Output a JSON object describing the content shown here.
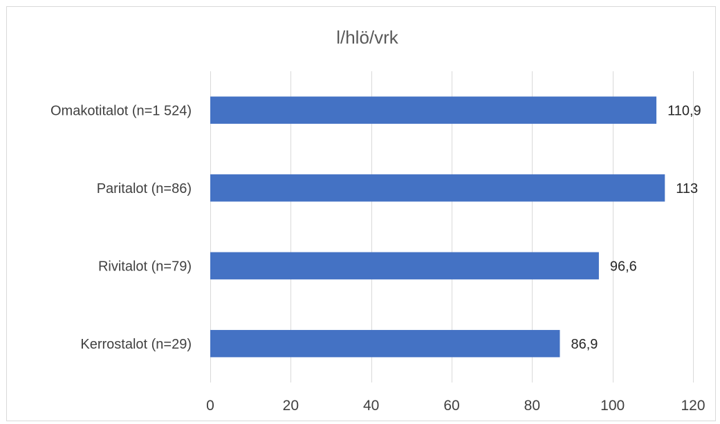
{
  "chart_data": {
    "type": "bar",
    "orientation": "horizontal",
    "title": "l/hlö/vrk",
    "xlabel": "",
    "ylabel": "",
    "categories": [
      "Omakotitalot (n=1 524)",
      "Paritalot (n=86)",
      "Rivitalot (n=79)",
      "Kerrostalot (n=29)"
    ],
    "values": [
      110.9,
      113,
      96.6,
      86.9
    ],
    "value_labels": [
      "110,9",
      "113",
      "96,6",
      "86,9"
    ],
    "xlim": [
      0,
      120
    ],
    "xticks": [
      0,
      20,
      40,
      60,
      80,
      100,
      120
    ],
    "xtick_labels": [
      "0",
      "20",
      "40",
      "60",
      "80",
      "100",
      "120"
    ],
    "grid": true,
    "legend": "none",
    "bar_color": "#4472c4"
  }
}
